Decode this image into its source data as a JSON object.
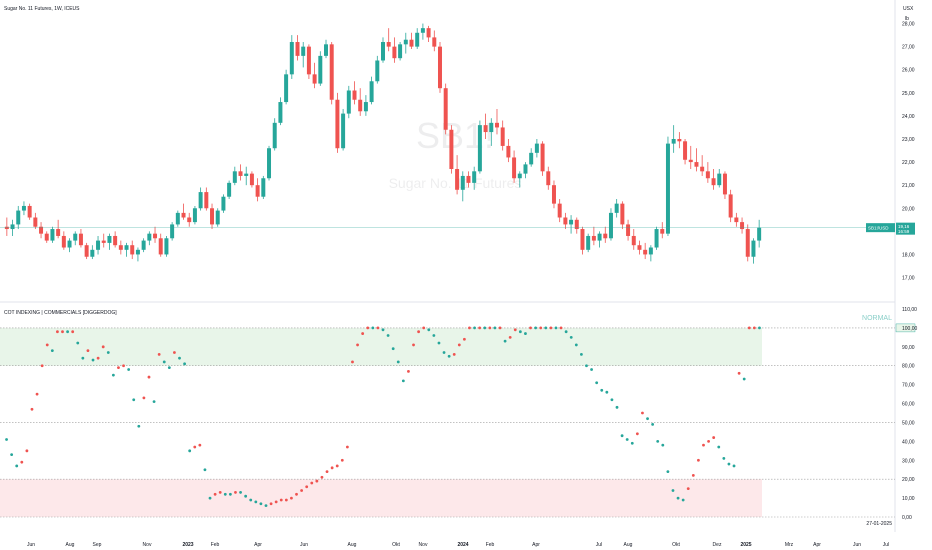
{
  "header": {
    "symbol_title": "Sugar No. 11 Futures, 1W, ICEUS",
    "currency": "USX",
    "unit": "lb"
  },
  "watermark": {
    "ticker": "SB1!",
    "name": "Sugar No. 11 Futures"
  },
  "indicator": {
    "title": "COT INDEXING | COMMERCIALS [DIGGERDOG]",
    "status_label": "NORMAL"
  },
  "date_readout": "27-01-2025",
  "colors": {
    "up": "#26a69a",
    "down": "#ef5350",
    "price_line": "#26a69a",
    "band_high": "#e8f5e9",
    "band_low": "#fde8ea",
    "last_price_label": "#26a69a"
  },
  "chart_data": [
    {
      "type": "candlestick",
      "title": "Sugar No. 11 Futures, 1W, ICEUS",
      "ylabel": "USX / lb",
      "ylim": [
        16.2,
        28.5
      ],
      "y_ticks": [
        "28,00",
        "27,00",
        "26,00",
        "25,00",
        "24,00",
        "23,00",
        "22,00",
        "21,00",
        "20,00",
        "18,00",
        "17,00"
      ],
      "last_price": "19,16",
      "last_price_marker": "SB1!/USD",
      "countdown": "16:59",
      "x_ticks": [
        "Jun",
        "Aug",
        "Sep",
        "Nov",
        "2023",
        "Feb",
        "Apr",
        "Jun",
        "Aug",
        "Okt",
        "Nov",
        "2024",
        "Feb",
        "Apr",
        "Jul",
        "Aug",
        "Okt",
        "Dez",
        "2025",
        "Mrz",
        "Apr",
        "Jun",
        "Jul"
      ],
      "series": [
        {
          "o": 19.2,
          "h": 19.6,
          "l": 18.8,
          "c": 19.1
        },
        {
          "o": 19.1,
          "h": 19.5,
          "l": 18.8,
          "c": 19.3
        },
        {
          "o": 19.3,
          "h": 20.1,
          "l": 19.1,
          "c": 19.9
        },
        {
          "o": 19.9,
          "h": 20.3,
          "l": 19.7,
          "c": 20.1
        },
        {
          "o": 20.1,
          "h": 20.2,
          "l": 19.5,
          "c": 19.6
        },
        {
          "o": 19.6,
          "h": 19.8,
          "l": 19.1,
          "c": 19.2
        },
        {
          "o": 19.2,
          "h": 19.4,
          "l": 18.7,
          "c": 18.9
        },
        {
          "o": 18.9,
          "h": 19.0,
          "l": 18.5,
          "c": 18.6
        },
        {
          "o": 18.6,
          "h": 19.2,
          "l": 18.5,
          "c": 19.1
        },
        {
          "o": 19.1,
          "h": 19.5,
          "l": 18.7,
          "c": 18.8
        },
        {
          "o": 18.8,
          "h": 19.0,
          "l": 18.2,
          "c": 18.3
        },
        {
          "o": 18.3,
          "h": 18.7,
          "l": 18.1,
          "c": 18.6
        },
        {
          "o": 18.6,
          "h": 19.0,
          "l": 18.4,
          "c": 18.9
        },
        {
          "o": 18.9,
          "h": 19.1,
          "l": 18.3,
          "c": 18.4
        },
        {
          "o": 18.4,
          "h": 18.5,
          "l": 17.8,
          "c": 17.9
        },
        {
          "o": 17.9,
          "h": 18.4,
          "l": 17.8,
          "c": 18.2
        },
        {
          "o": 18.2,
          "h": 18.8,
          "l": 18.0,
          "c": 18.6
        },
        {
          "o": 18.6,
          "h": 18.9,
          "l": 18.3,
          "c": 18.5
        },
        {
          "o": 18.5,
          "h": 18.9,
          "l": 18.2,
          "c": 18.8
        },
        {
          "o": 18.8,
          "h": 19.0,
          "l": 18.3,
          "c": 18.4
        },
        {
          "o": 18.4,
          "h": 18.6,
          "l": 18.0,
          "c": 18.2
        },
        {
          "o": 18.2,
          "h": 18.5,
          "l": 17.9,
          "c": 18.4
        },
        {
          "o": 18.4,
          "h": 18.6,
          "l": 17.8,
          "c": 18.0
        },
        {
          "o": 18.0,
          "h": 18.3,
          "l": 17.7,
          "c": 18.2
        },
        {
          "o": 18.2,
          "h": 18.7,
          "l": 18.1,
          "c": 18.6
        },
        {
          "o": 18.6,
          "h": 19.0,
          "l": 18.4,
          "c": 18.9
        },
        {
          "o": 18.9,
          "h": 19.2,
          "l": 18.5,
          "c": 18.7
        },
        {
          "o": 18.7,
          "h": 18.9,
          "l": 17.9,
          "c": 18.0
        },
        {
          "o": 18.0,
          "h": 18.8,
          "l": 17.9,
          "c": 18.7
        },
        {
          "o": 18.7,
          "h": 19.4,
          "l": 18.6,
          "c": 19.3
        },
        {
          "o": 19.3,
          "h": 19.9,
          "l": 19.2,
          "c": 19.8
        },
        {
          "o": 19.8,
          "h": 20.2,
          "l": 19.5,
          "c": 19.6
        },
        {
          "o": 19.6,
          "h": 19.8,
          "l": 19.2,
          "c": 19.4
        },
        {
          "o": 19.4,
          "h": 20.1,
          "l": 19.3,
          "c": 20.0
        },
        {
          "o": 20.0,
          "h": 20.9,
          "l": 19.9,
          "c": 20.7
        },
        {
          "o": 20.7,
          "h": 20.9,
          "l": 19.9,
          "c": 20.0
        },
        {
          "o": 20.0,
          "h": 20.2,
          "l": 19.1,
          "c": 19.3
        },
        {
          "o": 19.3,
          "h": 20.0,
          "l": 19.2,
          "c": 19.9
        },
        {
          "o": 19.9,
          "h": 20.6,
          "l": 19.8,
          "c": 20.5
        },
        {
          "o": 20.5,
          "h": 21.2,
          "l": 20.4,
          "c": 21.1
        },
        {
          "o": 21.1,
          "h": 21.8,
          "l": 21.0,
          "c": 21.6
        },
        {
          "o": 21.6,
          "h": 21.9,
          "l": 21.2,
          "c": 21.4
        },
        {
          "o": 21.4,
          "h": 21.8,
          "l": 21.0,
          "c": 21.5
        },
        {
          "o": 21.5,
          "h": 21.6,
          "l": 20.9,
          "c": 21.0
        },
        {
          "o": 21.0,
          "h": 21.3,
          "l": 20.3,
          "c": 20.5
        },
        {
          "o": 20.5,
          "h": 21.4,
          "l": 20.4,
          "c": 21.3
        },
        {
          "o": 21.3,
          "h": 22.7,
          "l": 21.2,
          "c": 22.6
        },
        {
          "o": 22.6,
          "h": 23.9,
          "l": 22.5,
          "c": 23.7
        },
        {
          "o": 23.7,
          "h": 24.8,
          "l": 23.6,
          "c": 24.6
        },
        {
          "o": 24.6,
          "h": 26.0,
          "l": 24.5,
          "c": 25.8
        },
        {
          "o": 25.8,
          "h": 27.5,
          "l": 25.6,
          "c": 27.2
        },
        {
          "o": 27.2,
          "h": 27.5,
          "l": 26.4,
          "c": 26.6
        },
        {
          "o": 26.6,
          "h": 27.2,
          "l": 26.1,
          "c": 27.0
        },
        {
          "o": 27.0,
          "h": 27.1,
          "l": 25.6,
          "c": 25.8
        },
        {
          "o": 25.8,
          "h": 26.3,
          "l": 25.2,
          "c": 25.4
        },
        {
          "o": 25.4,
          "h": 26.8,
          "l": 25.3,
          "c": 26.6
        },
        {
          "o": 26.6,
          "h": 27.3,
          "l": 26.5,
          "c": 27.1
        },
        {
          "o": 27.1,
          "h": 27.2,
          "l": 24.5,
          "c": 24.7
        },
        {
          "o": 24.7,
          "h": 25.0,
          "l": 22.4,
          "c": 22.6
        },
        {
          "o": 22.6,
          "h": 24.3,
          "l": 22.5,
          "c": 24.1
        },
        {
          "o": 24.1,
          "h": 25.3,
          "l": 23.9,
          "c": 25.1
        },
        {
          "o": 25.1,
          "h": 25.5,
          "l": 24.5,
          "c": 24.7
        },
        {
          "o": 24.7,
          "h": 25.2,
          "l": 24.0,
          "c": 24.2
        },
        {
          "o": 24.2,
          "h": 24.9,
          "l": 24.0,
          "c": 24.6
        },
        {
          "o": 24.6,
          "h": 25.7,
          "l": 24.5,
          "c": 25.5
        },
        {
          "o": 25.5,
          "h": 26.6,
          "l": 25.4,
          "c": 26.4
        },
        {
          "o": 26.4,
          "h": 27.4,
          "l": 26.3,
          "c": 27.2
        },
        {
          "o": 27.2,
          "h": 27.8,
          "l": 26.8,
          "c": 27.0
        },
        {
          "o": 27.0,
          "h": 27.4,
          "l": 26.3,
          "c": 26.5
        },
        {
          "o": 26.5,
          "h": 27.2,
          "l": 26.4,
          "c": 27.1
        },
        {
          "o": 27.1,
          "h": 27.6,
          "l": 26.7,
          "c": 27.3
        },
        {
          "o": 27.3,
          "h": 27.6,
          "l": 26.9,
          "c": 27.0
        },
        {
          "o": 27.0,
          "h": 27.8,
          "l": 26.9,
          "c": 27.6
        },
        {
          "o": 27.6,
          "h": 28.0,
          "l": 27.3,
          "c": 27.8
        },
        {
          "o": 27.8,
          "h": 27.9,
          "l": 27.2,
          "c": 27.4
        },
        {
          "o": 27.4,
          "h": 27.7,
          "l": 26.8,
          "c": 27.0
        },
        {
          "o": 27.0,
          "h": 27.2,
          "l": 25.0,
          "c": 25.2
        },
        {
          "o": 25.2,
          "h": 25.4,
          "l": 23.2,
          "c": 23.4
        },
        {
          "o": 23.4,
          "h": 23.6,
          "l": 21.5,
          "c": 21.7
        },
        {
          "o": 21.7,
          "h": 22.3,
          "l": 20.6,
          "c": 20.8
        },
        {
          "o": 20.8,
          "h": 21.6,
          "l": 20.3,
          "c": 21.4
        },
        {
          "o": 21.4,
          "h": 21.6,
          "l": 20.9,
          "c": 21.1
        },
        {
          "o": 21.1,
          "h": 21.8,
          "l": 20.8,
          "c": 21.6
        },
        {
          "o": 21.6,
          "h": 23.8,
          "l": 21.5,
          "c": 23.6
        },
        {
          "o": 23.6,
          "h": 24.1,
          "l": 23.0,
          "c": 23.3
        },
        {
          "o": 23.3,
          "h": 23.9,
          "l": 22.7,
          "c": 23.7
        },
        {
          "o": 23.7,
          "h": 24.3,
          "l": 23.2,
          "c": 23.5
        },
        {
          "o": 23.5,
          "h": 23.8,
          "l": 22.5,
          "c": 22.7
        },
        {
          "o": 22.7,
          "h": 23.0,
          "l": 22.0,
          "c": 22.2
        },
        {
          "o": 22.2,
          "h": 22.5,
          "l": 21.1,
          "c": 21.3
        },
        {
          "o": 21.3,
          "h": 21.6,
          "l": 20.9,
          "c": 21.5
        },
        {
          "o": 21.5,
          "h": 22.0,
          "l": 21.3,
          "c": 21.9
        },
        {
          "o": 21.9,
          "h": 22.6,
          "l": 21.8,
          "c": 22.4
        },
        {
          "o": 22.4,
          "h": 23.0,
          "l": 22.2,
          "c": 22.8
        },
        {
          "o": 22.8,
          "h": 22.9,
          "l": 21.4,
          "c": 21.6
        },
        {
          "o": 21.6,
          "h": 21.8,
          "l": 20.8,
          "c": 21.0
        },
        {
          "o": 21.0,
          "h": 21.2,
          "l": 20.0,
          "c": 20.2
        },
        {
          "o": 20.2,
          "h": 20.4,
          "l": 19.4,
          "c": 19.6
        },
        {
          "o": 19.6,
          "h": 19.8,
          "l": 19.1,
          "c": 19.3
        },
        {
          "o": 19.3,
          "h": 19.7,
          "l": 18.9,
          "c": 19.5
        },
        {
          "o": 19.5,
          "h": 19.6,
          "l": 18.9,
          "c": 19.1
        },
        {
          "o": 19.1,
          "h": 19.2,
          "l": 18.0,
          "c": 18.2
        },
        {
          "o": 18.2,
          "h": 18.9,
          "l": 18.1,
          "c": 18.8
        },
        {
          "o": 18.8,
          "h": 19.2,
          "l": 18.4,
          "c": 18.6
        },
        {
          "o": 18.6,
          "h": 19.0,
          "l": 18.3,
          "c": 18.9
        },
        {
          "o": 18.9,
          "h": 19.2,
          "l": 18.5,
          "c": 18.7
        },
        {
          "o": 18.7,
          "h": 20.0,
          "l": 18.6,
          "c": 19.8
        },
        {
          "o": 19.8,
          "h": 20.4,
          "l": 19.6,
          "c": 20.2
        },
        {
          "o": 20.2,
          "h": 20.3,
          "l": 19.1,
          "c": 19.3
        },
        {
          "o": 19.3,
          "h": 19.5,
          "l": 18.6,
          "c": 18.8
        },
        {
          "o": 18.8,
          "h": 19.1,
          "l": 18.2,
          "c": 18.4
        },
        {
          "o": 18.4,
          "h": 18.6,
          "l": 18.0,
          "c": 18.2
        },
        {
          "o": 18.2,
          "h": 18.5,
          "l": 17.8,
          "c": 18.0
        },
        {
          "o": 18.0,
          "h": 18.4,
          "l": 17.7,
          "c": 18.3
        },
        {
          "o": 18.3,
          "h": 19.2,
          "l": 18.2,
          "c": 19.1
        },
        {
          "o": 19.1,
          "h": 19.4,
          "l": 18.7,
          "c": 18.9
        },
        {
          "o": 18.9,
          "h": 23.1,
          "l": 18.8,
          "c": 22.8
        },
        {
          "o": 22.8,
          "h": 23.6,
          "l": 22.4,
          "c": 23.0
        },
        {
          "o": 23.0,
          "h": 23.3,
          "l": 22.6,
          "c": 22.9
        },
        {
          "o": 22.9,
          "h": 23.0,
          "l": 21.9,
          "c": 22.1
        },
        {
          "o": 22.1,
          "h": 22.7,
          "l": 21.7,
          "c": 22.0
        },
        {
          "o": 22.0,
          "h": 22.6,
          "l": 21.6,
          "c": 21.8
        },
        {
          "o": 21.8,
          "h": 22.3,
          "l": 21.4,
          "c": 21.6
        },
        {
          "o": 21.6,
          "h": 22.0,
          "l": 21.1,
          "c": 21.3
        },
        {
          "o": 21.3,
          "h": 21.7,
          "l": 20.8,
          "c": 21.0
        },
        {
          "o": 21.0,
          "h": 21.7,
          "l": 20.9,
          "c": 21.5
        },
        {
          "o": 21.5,
          "h": 21.6,
          "l": 20.4,
          "c": 20.6
        },
        {
          "o": 20.6,
          "h": 20.8,
          "l": 19.4,
          "c": 19.6
        },
        {
          "o": 19.6,
          "h": 19.8,
          "l": 19.2,
          "c": 19.4
        },
        {
          "o": 19.4,
          "h": 19.6,
          "l": 18.9,
          "c": 19.1
        },
        {
          "o": 19.1,
          "h": 19.3,
          "l": 17.7,
          "c": 17.9
        },
        {
          "o": 17.9,
          "h": 18.7,
          "l": 17.6,
          "c": 18.6
        },
        {
          "o": 18.6,
          "h": 19.5,
          "l": 18.3,
          "c": 19.16
        }
      ]
    },
    {
      "type": "scatter",
      "title": "COT INDEXING | COMMERCIALS [DIGGERDOG]",
      "ylim": [
        0,
        110
      ],
      "y_ticks": [
        "110,00",
        "100,00",
        "90,00",
        "80,00",
        "70,00",
        "60,00",
        "50,00",
        "40,00",
        "30,00",
        "20,00",
        "10,00",
        "0,00"
      ],
      "bands": [
        {
          "from": 80,
          "to": 100,
          "label": "high"
        },
        {
          "from": 0,
          "to": 20,
          "label": "low"
        }
      ],
      "reference_lines": [
        100,
        80,
        50,
        20,
        0
      ],
      "values": [
        41,
        33,
        27,
        29,
        35,
        57,
        65,
        80,
        91,
        88,
        98,
        98,
        98,
        98,
        92,
        84,
        88,
        83,
        84,
        90,
        87,
        75,
        79,
        80,
        78,
        62,
        48,
        63,
        74,
        61,
        86,
        82,
        79,
        87,
        84,
        81,
        35,
        37,
        38,
        25,
        10,
        12,
        13,
        12,
        12,
        13,
        13,
        11,
        9,
        8,
        7,
        6,
        7,
        8,
        9,
        9,
        10,
        12,
        14,
        16,
        18,
        19,
        21,
        24,
        26,
        27,
        30,
        37,
        82,
        91,
        97,
        100,
        100,
        100,
        99,
        96,
        89,
        82,
        72,
        77,
        91,
        98,
        100,
        99,
        96,
        92,
        87,
        85,
        86,
        91,
        94,
        100,
        100,
        100,
        100,
        100,
        100,
        100,
        93,
        95,
        99,
        98,
        97,
        100,
        100,
        100,
        100,
        100,
        100,
        100,
        98,
        95,
        91,
        86,
        80,
        78,
        71,
        67,
        66,
        62,
        58,
        43,
        41,
        39,
        44,
        55,
        52,
        49,
        40,
        38,
        24,
        14,
        10,
        9,
        15,
        22,
        30,
        38,
        40,
        42,
        37,
        31,
        28,
        27,
        76,
        73,
        100,
        100,
        100
      ]
    }
  ]
}
